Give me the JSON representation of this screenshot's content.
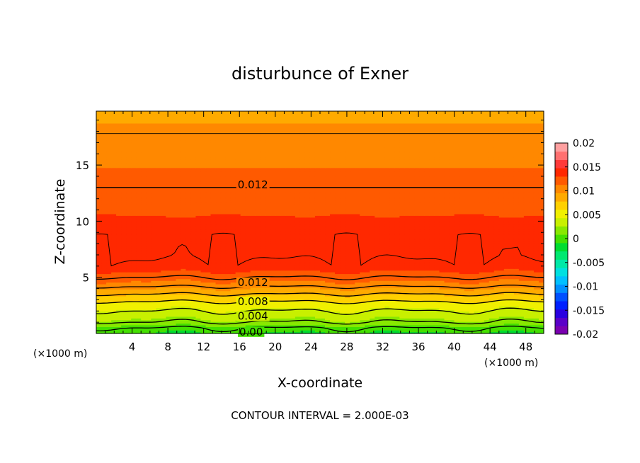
{
  "chart_data": {
    "type": "contour",
    "title": "disturbunce of Exner",
    "xlabel": "X-coordinate",
    "ylabel": "Z-coordinate",
    "x_unit_left": "(×1000 m)",
    "x_unit_right": "(×1000 m)",
    "xlim": [
      0,
      50
    ],
    "ylim": [
      0,
      19.8
    ],
    "x_ticks": [
      4,
      8,
      12,
      16,
      20,
      24,
      28,
      32,
      36,
      40,
      44,
      48
    ],
    "y_ticks": [
      5,
      10,
      15
    ],
    "footer": "CONTOUR INTERVAL = 2.000E-03",
    "contour_interval": 0.002,
    "colorbar": {
      "min": -0.02,
      "max": 0.02,
      "tick_labels": [
        "0.02",
        "0.015",
        "0.01",
        "0.005",
        "0",
        "-0.005",
        "-0.01",
        "-0.015",
        "-0.02"
      ],
      "tick_values": [
        0.02,
        0.015,
        0.01,
        0.005,
        0,
        -0.005,
        -0.01,
        -0.015,
        -0.02
      ],
      "colors_bottom_to_top": [
        "#7a00b0",
        "#5a00c8",
        "#2a00e0",
        "#0020ff",
        "#0050ff",
        "#0090ff",
        "#00c0ff",
        "#00e0e0",
        "#00e8a8",
        "#00e870",
        "#00dc30",
        "#44e000",
        "#88e800",
        "#c8f000",
        "#f0f000",
        "#ffd000",
        "#ffaa00",
        "#ff8800",
        "#ff5a00",
        "#ff2800",
        "#ff3a3a",
        "#ff7070",
        "#ffa0a0"
      ]
    },
    "field_profile_z": [
      0,
      0.5,
      1,
      1.5,
      2,
      2.5,
      3,
      3.5,
      4,
      4.5,
      5,
      5.5,
      6,
      7,
      8,
      9,
      10,
      11,
      12,
      13,
      14,
      15,
      16,
      17,
      18,
      19,
      19.8
    ],
    "field_profile_value": [
      -0.001,
      0.0,
      0.002,
      0.003,
      0.004,
      0.005,
      0.0065,
      0.008,
      0.0095,
      0.011,
      0.012,
      0.013,
      0.0138,
      0.0142,
      0.0142,
      0.0138,
      0.0133,
      0.0128,
      0.0124,
      0.012,
      0.0116,
      0.0112,
      0.0108,
      0.0104,
      0.0099,
      0.0094,
      0.009
    ],
    "contour_labels": [
      {
        "text": "0.012",
        "x": 17.5,
        "z": 13.3
      },
      {
        "text": "0.012",
        "x": 17.5,
        "z": 4.6
      },
      {
        "text": "0.008",
        "x": 17.5,
        "z": 2.9
      },
      {
        "text": "0.004",
        "x": 17.5,
        "z": 1.6
      },
      {
        "text": "0.00",
        "x": 17.3,
        "z": 0.2
      }
    ]
  }
}
